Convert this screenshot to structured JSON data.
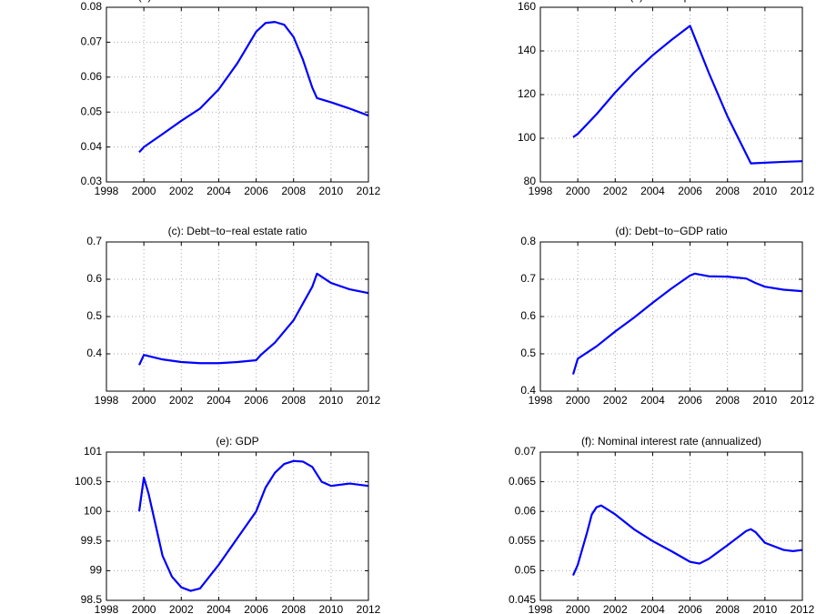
{
  "chart_data": [
    {
      "type": "line",
      "title": "(a): Residential investment−to−GDP ratio",
      "color": "#0000ff",
      "x": [
        1999.75,
        2000,
        2001,
        2002,
        2003,
        2004,
        2005,
        2006,
        2006.5,
        2007,
        2007.5,
        2008,
        2008.5,
        2009,
        2009.25,
        2010,
        2011,
        2012
      ],
      "values": [
        0.0385,
        0.04,
        0.0437,
        0.0475,
        0.051,
        0.0565,
        0.064,
        0.073,
        0.0755,
        0.0758,
        0.075,
        0.0715,
        0.065,
        0.057,
        0.054,
        0.0528,
        0.051,
        0.049
      ],
      "xlim": [
        1998,
        2012
      ],
      "xticks": [
        1998,
        2000,
        2002,
        2004,
        2006,
        2008,
        2010,
        2012
      ],
      "ylim": [
        0.03,
        0.08
      ],
      "yticks": [
        0.03,
        0.04,
        0.05,
        0.06,
        0.07,
        0.08
      ],
      "grid": true
    },
    {
      "type": "line",
      "title": "(b): House prices",
      "color": "#0000ff",
      "x": [
        1999.75,
        2000,
        2001,
        2002,
        2003,
        2004,
        2005,
        2006,
        2007,
        2008,
        2009.25,
        2010,
        2011,
        2012
      ],
      "values": [
        100.5,
        102,
        111,
        121,
        130,
        138,
        145,
        151.5,
        130,
        110,
        88.5,
        88.8,
        89.2,
        89.5
      ],
      "xlim": [
        1998,
        2012
      ],
      "xticks": [
        1998,
        2000,
        2002,
        2004,
        2006,
        2008,
        2010,
        2012
      ],
      "ylim": [
        80,
        160
      ],
      "yticks": [
        80,
        100,
        120,
        140,
        160
      ],
      "grid": true
    },
    {
      "type": "line",
      "title": "(c): Debt−to−real estate ratio",
      "color": "#0000ff",
      "x": [
        1999.75,
        2000,
        2001,
        2002,
        2003,
        2004,
        2005,
        2006,
        2006.25,
        2007,
        2008,
        2009,
        2009.25,
        2010,
        2011,
        2012
      ],
      "values": [
        0.37,
        0.397,
        0.385,
        0.378,
        0.375,
        0.375,
        0.378,
        0.383,
        0.397,
        0.43,
        0.49,
        0.58,
        0.615,
        0.59,
        0.573,
        0.563
      ],
      "xlim": [
        1998,
        2012
      ],
      "xticks": [
        1998,
        2000,
        2002,
        2004,
        2006,
        2008,
        2010,
        2012
      ],
      "ylim": [
        0.3,
        0.7
      ],
      "yticks": [
        0.4,
        0.5,
        0.6,
        0.7
      ],
      "grid": true
    },
    {
      "type": "line",
      "title": "(d): Debt−to−GDP ratio",
      "color": "#0000ff",
      "x": [
        1999.75,
        2000,
        2001,
        2002,
        2003,
        2004,
        2005,
        2006,
        2006.25,
        2007,
        2008,
        2009,
        2009.5,
        2010,
        2011,
        2012
      ],
      "values": [
        0.445,
        0.487,
        0.52,
        0.56,
        0.597,
        0.637,
        0.675,
        0.71,
        0.715,
        0.708,
        0.707,
        0.702,
        0.69,
        0.68,
        0.672,
        0.668
      ],
      "xlim": [
        1998,
        2012
      ],
      "xticks": [
        1998,
        2000,
        2002,
        2004,
        2006,
        2008,
        2010,
        2012
      ],
      "ylim": [
        0.4,
        0.8
      ],
      "yticks": [
        0.4,
        0.5,
        0.6,
        0.7,
        0.8
      ],
      "grid": true
    },
    {
      "type": "line",
      "title": "(e): GDP",
      "color": "#0000ff",
      "x": [
        1999.75,
        2000,
        2000.25,
        2000.75,
        2001,
        2001.5,
        2002,
        2002.5,
        2003,
        2004,
        2005,
        2006,
        2006.5,
        2007,
        2007.5,
        2008,
        2008.5,
        2009,
        2009.5,
        2010,
        2011,
        2012
      ],
      "values": [
        100.0,
        100.57,
        100.3,
        99.6,
        99.25,
        98.9,
        98.72,
        98.66,
        98.7,
        99.1,
        99.55,
        100.0,
        100.4,
        100.65,
        100.8,
        100.85,
        100.84,
        100.75,
        100.5,
        100.43,
        100.47,
        100.43
      ],
      "xlim": [
        1998,
        2012
      ],
      "xticks": [
        1998,
        2000,
        2002,
        2004,
        2006,
        2008,
        2010,
        2012
      ],
      "ylim": [
        98.5,
        101
      ],
      "yticks": [
        98.5,
        99,
        99.5,
        100,
        100.5,
        101
      ],
      "grid": true
    },
    {
      "type": "line",
      "title": "(f): Nominal interest rate (annualized)",
      "color": "#0000ff",
      "x": [
        1999.75,
        2000,
        2000.5,
        2000.75,
        2001,
        2001.25,
        2002,
        2003,
        2004,
        2005,
        2006,
        2006.5,
        2007,
        2008,
        2009,
        2009.25,
        2009.5,
        2010,
        2011,
        2011.5,
        2012
      ],
      "values": [
        0.0492,
        0.051,
        0.0565,
        0.0595,
        0.0607,
        0.061,
        0.0595,
        0.057,
        0.055,
        0.0533,
        0.0515,
        0.0512,
        0.052,
        0.0543,
        0.0567,
        0.057,
        0.0565,
        0.0547,
        0.0535,
        0.0533,
        0.0535
      ],
      "xlim": [
        1998,
        2012
      ],
      "xticks": [
        1998,
        2000,
        2002,
        2004,
        2006,
        2008,
        2010,
        2012
      ],
      "ylim": [
        0.045,
        0.07
      ],
      "yticks": [
        0.045,
        0.05,
        0.055,
        0.06,
        0.065,
        0.07
      ],
      "grid": true
    }
  ]
}
